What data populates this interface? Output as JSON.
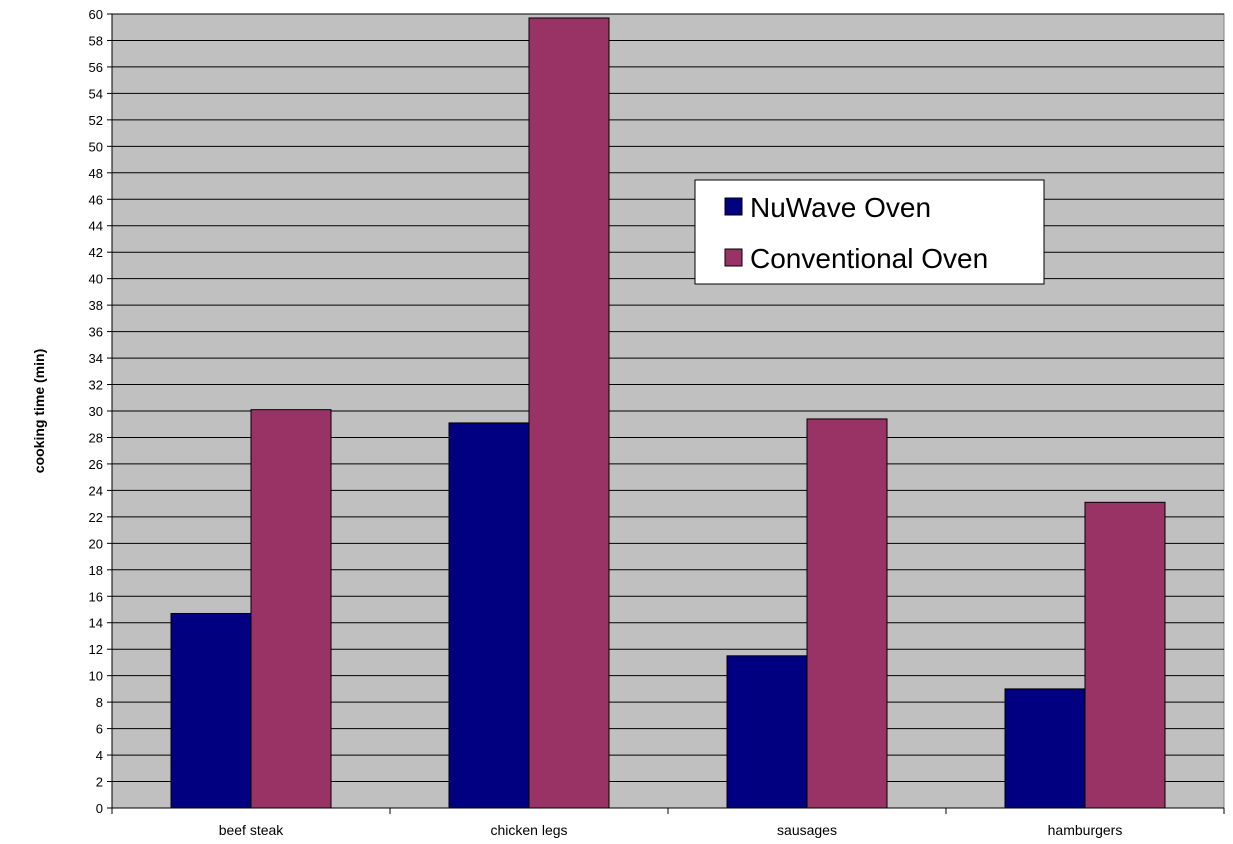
{
  "chart_data": {
    "type": "bar",
    "title": "",
    "xlabel": "",
    "ylabel": "cooking time (min)",
    "ylim": [
      0,
      60
    ],
    "ytick_step": 2,
    "grid": true,
    "legend_position": "upper-right-center",
    "categories": [
      "beef steak",
      "chicken legs",
      "sausages",
      "hamburgers"
    ],
    "series": [
      {
        "name": "NuWave Oven",
        "color": "#000080",
        "values": [
          14.7,
          29.1,
          11.5,
          9.0
        ]
      },
      {
        "name": "Conventional Oven",
        "color": "#993366",
        "values": [
          30.1,
          59.7,
          29.4,
          23.1
        ]
      }
    ],
    "plot_background": "#c0c0c0"
  }
}
